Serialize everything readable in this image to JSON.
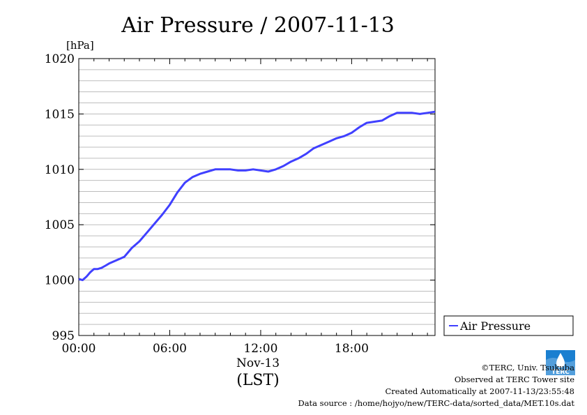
{
  "chart_data": {
    "type": "line",
    "title": "Air Pressure / 2007-11-13",
    "ylabel": "[hPa]",
    "xlabel": "(LST)",
    "x_date_label": "Nov-13",
    "ylim": [
      995,
      1020
    ],
    "y_ticks": [
      "995",
      "1000",
      "1005",
      "1010",
      "1015",
      "1020"
    ],
    "x_ticks": [
      "00:00",
      "06:00",
      "12:00",
      "18:00"
    ],
    "x_tick_hours": [
      0,
      6,
      12,
      18
    ],
    "xlim_hours": [
      0,
      23.5
    ],
    "grid": true,
    "legend_position": "right",
    "series": [
      {
        "name": "Air Pressure",
        "color": "#4040ff",
        "x_hours": [
          0,
          0.25,
          0.5,
          0.75,
          1.0,
          1.25,
          1.5,
          1.75,
          2.0,
          2.5,
          3.0,
          3.25,
          3.5,
          4.0,
          4.5,
          5.0,
          5.5,
          6.0,
          6.5,
          7.0,
          7.5,
          8.0,
          8.5,
          9.0,
          9.5,
          10.0,
          10.5,
          11.0,
          11.5,
          12.0,
          12.5,
          13.0,
          13.5,
          14.0,
          14.5,
          15.0,
          15.5,
          16.0,
          16.5,
          17.0,
          17.5,
          18.0,
          18.5,
          19.0,
          19.5,
          20.0,
          20.5,
          21.0,
          21.5,
          22.0,
          22.5,
          23.0,
          23.5
        ],
        "values": [
          1000.1,
          1000.0,
          1000.3,
          1000.7,
          1001.0,
          1001.0,
          1001.1,
          1001.3,
          1001.5,
          1001.8,
          1002.1,
          1002.5,
          1002.9,
          1003.5,
          1004.3,
          1005.1,
          1005.9,
          1006.8,
          1007.9,
          1008.8,
          1009.3,
          1009.6,
          1009.8,
          1010.0,
          1010.0,
          1010.0,
          1009.9,
          1009.9,
          1010.0,
          1009.9,
          1009.8,
          1010.0,
          1010.3,
          1010.7,
          1011.0,
          1011.4,
          1011.9,
          1012.2,
          1012.5,
          1012.8,
          1013.0,
          1013.3,
          1013.8,
          1014.2,
          1014.3,
          1014.4,
          1014.8,
          1015.1,
          1015.1,
          1015.1,
          1015.0,
          1015.1,
          1015.2
        ]
      }
    ]
  },
  "footer": {
    "copyright": "©TERC, Univ. Tsukuba",
    "site": "Observed at TERC Tower site",
    "created": "Created Automatically at 2007-11-13/23:55:48",
    "source": "Data source : /home/hojyo/new/TERC-data/sorted_data/MET.10s.dat"
  },
  "logo": {
    "text": "TERC",
    "color": "#1a7fd0"
  }
}
